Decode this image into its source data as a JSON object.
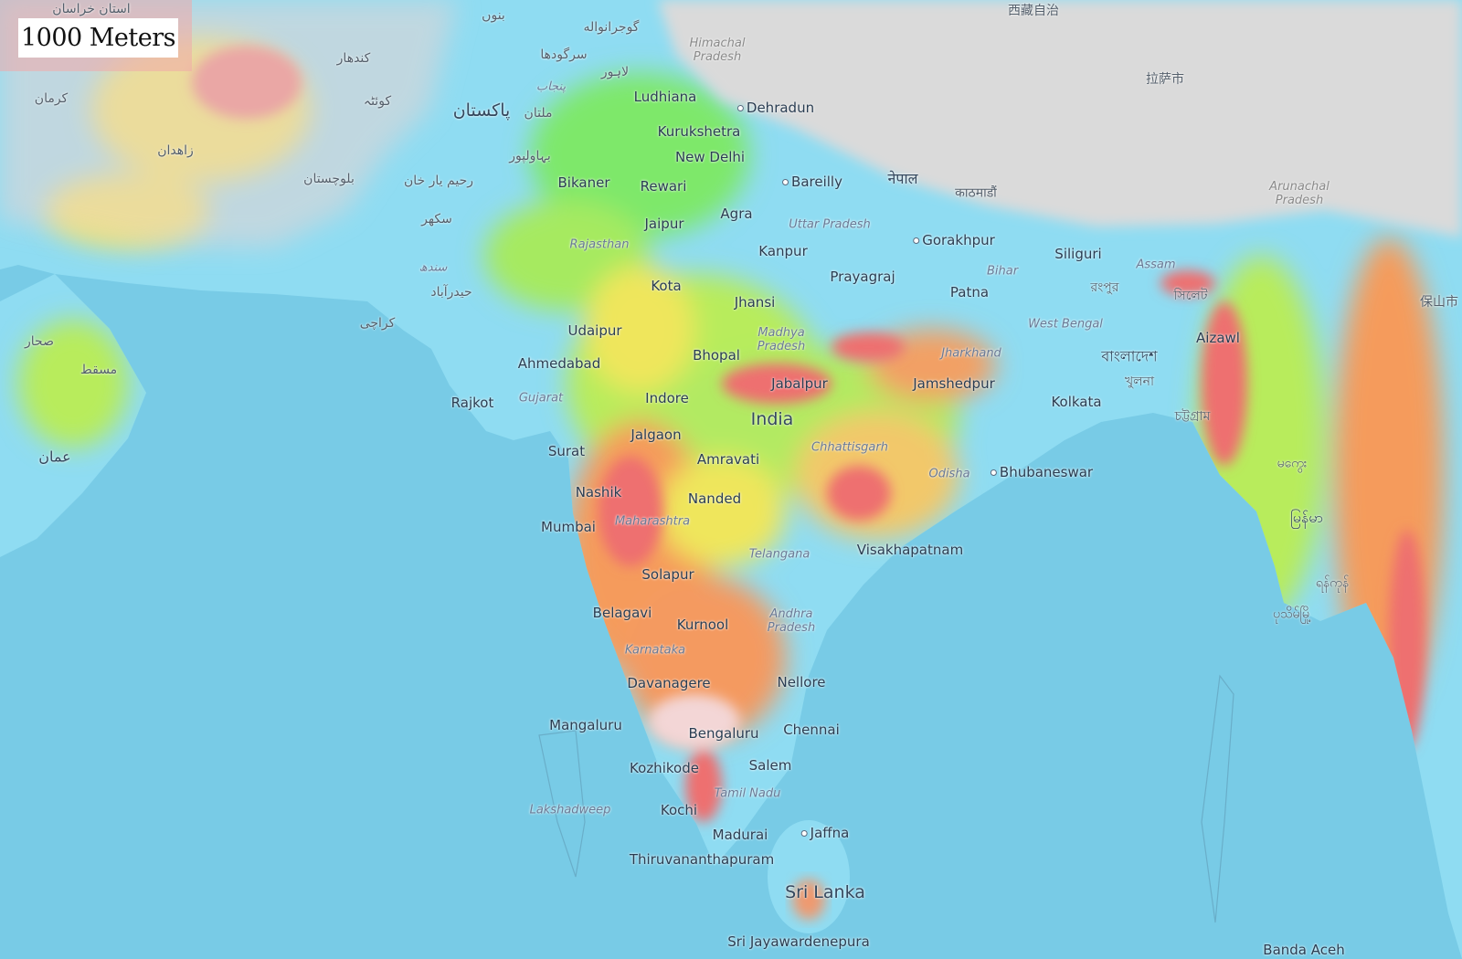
{
  "legend": {
    "label": "1000 Meters"
  },
  "colors": {
    "ocean": "#78cbe6",
    "lowland": "#8fdcf2",
    "green": "#7ee86a",
    "yellow": "#efe65c",
    "orange": "#f59b5c",
    "red": "#ee6f70",
    "mountain": "#d9d9d9"
  },
  "labels": {
    "countries": [
      "India",
      "Sri Lanka",
      "پاکستان",
      "नेपाल",
      "বাংলাদেশ",
      "عمان",
      "မြန်မာ"
    ],
    "states": [
      "Uttar Pradesh",
      "Rajasthan",
      "Bihar",
      "Assam",
      "Madhya Pradesh",
      "West Bengal",
      "Jharkhand",
      "Gujarat",
      "Chhattisgarh",
      "Odisha",
      "Maharashtra",
      "Telangana",
      "Andhra Pradesh",
      "Karnataka",
      "Tamil Nadu",
      "Lakshadweep",
      "Himachal Pradesh",
      "Arunachal Pradesh",
      "پنجاب",
      "سندھ"
    ],
    "cities": [
      "Ludhiana",
      "Dehradun",
      "Kurukshetra",
      "New Delhi",
      "Bikaner",
      "Rewari",
      "Bareilly",
      "Agra",
      "Jaipur",
      "Kanpur",
      "Gorakhpur",
      "Siliguri",
      "Prayagraj",
      "Kota",
      "Patna",
      "Jhansi",
      "Udaipur",
      "Aizawl",
      "Bhopal",
      "Ahmedabad",
      "Jabalpur",
      "Jamshedpur",
      "Rajkot",
      "Indore",
      "Kolkata",
      "Jalgaon",
      "Surat",
      "Amravati",
      "Bhubaneswar",
      "Nashik",
      "Nanded",
      "Mumbai",
      "Visakhapatnam",
      "Solapur",
      "Belagavi",
      "Kurnool",
      "Davanagere",
      "Nellore",
      "Mangaluru",
      "Chennai",
      "Bengaluru",
      "Kozhikode",
      "Salem",
      "Kochi",
      "Jaffna",
      "Madurai",
      "Thiruvananthapuram",
      "Sri Jayawardenepura",
      "Banda Aceh"
    ],
    "foreign": [
      "گوجرانواله",
      "سرگودھا",
      "لاہور",
      "ملتان",
      "بہاولپور",
      "رحیم یار خان",
      "سکھر",
      "حیدرآباد",
      "کراچی",
      "کوئٹہ",
      "کندھار",
      "زاهدان",
      "کرمان",
      "مسقط",
      "صحار",
      "بنوں",
      "काठमाडौं",
      "রংপুর",
      "সিলেট",
      "খুলনা",
      "চট্টগ্রাম",
      "拉萨市",
      "保山市",
      "西藏自治",
      "ရန်ကုန်",
      "ပုသိမ်မြို့",
      "မကွေး",
      "استان خراسان",
      "بلوچستان"
    ]
  }
}
